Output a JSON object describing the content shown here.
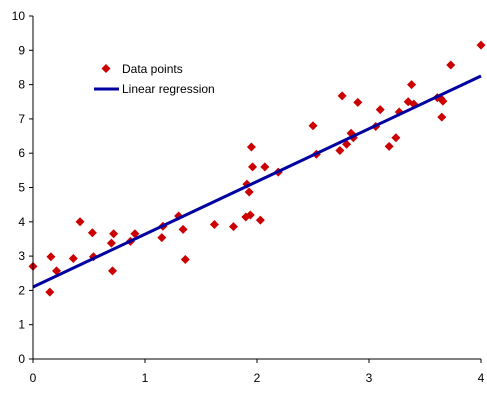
{
  "chart_data": {
    "type": "scatter",
    "title": "",
    "xlabel": "",
    "ylabel": "",
    "xlim": [
      0,
      4
    ],
    "ylim": [
      0,
      10
    ],
    "x_ticks": [
      "0",
      "1",
      "2",
      "3",
      "4"
    ],
    "y_ticks": [
      "0",
      "1",
      "2",
      "3",
      "4",
      "5",
      "6",
      "7",
      "8",
      "9",
      "10"
    ],
    "grid": false,
    "legend_position": "upper-left",
    "colors": {
      "points": "#cc0000",
      "line": "#0000a0",
      "axes": "#000000"
    },
    "series": [
      {
        "name": "Data points",
        "kind": "scatter",
        "marker": "diamond",
        "x": [
          0.0,
          0.15,
          0.16,
          0.21,
          0.36,
          0.42,
          0.53,
          0.54,
          0.7,
          0.71,
          0.72,
          0.87,
          0.91,
          1.15,
          1.16,
          1.3,
          1.34,
          1.36,
          1.62,
          1.79,
          1.9,
          1.91,
          1.93,
          1.94,
          1.95,
          1.96,
          2.03,
          2.07,
          2.19,
          2.5,
          2.53,
          2.74,
          2.76,
          2.8,
          2.84,
          2.86,
          2.9,
          3.06,
          3.1,
          3.18,
          3.24,
          3.27,
          3.35,
          3.38,
          3.4,
          3.61,
          3.64,
          3.65,
          3.66,
          3.73,
          4.0
        ],
        "y": [
          2.7,
          1.95,
          2.98,
          2.57,
          2.93,
          4.0,
          3.68,
          2.98,
          3.38,
          2.57,
          3.65,
          3.43,
          3.65,
          3.54,
          3.87,
          4.17,
          3.78,
          2.9,
          3.92,
          3.86,
          4.14,
          5.1,
          4.87,
          4.2,
          6.18,
          5.6,
          4.05,
          5.6,
          5.45,
          6.8,
          5.97,
          6.08,
          7.67,
          6.26,
          6.58,
          6.45,
          7.48,
          6.78,
          7.27,
          6.2,
          6.45,
          7.2,
          7.5,
          8.0,
          7.43,
          7.62,
          7.6,
          7.05,
          7.52,
          8.57,
          9.15
        ]
      },
      {
        "name": "Linear regression",
        "kind": "line",
        "x": [
          0,
          4
        ],
        "y": [
          2.1,
          8.25
        ]
      }
    ]
  }
}
